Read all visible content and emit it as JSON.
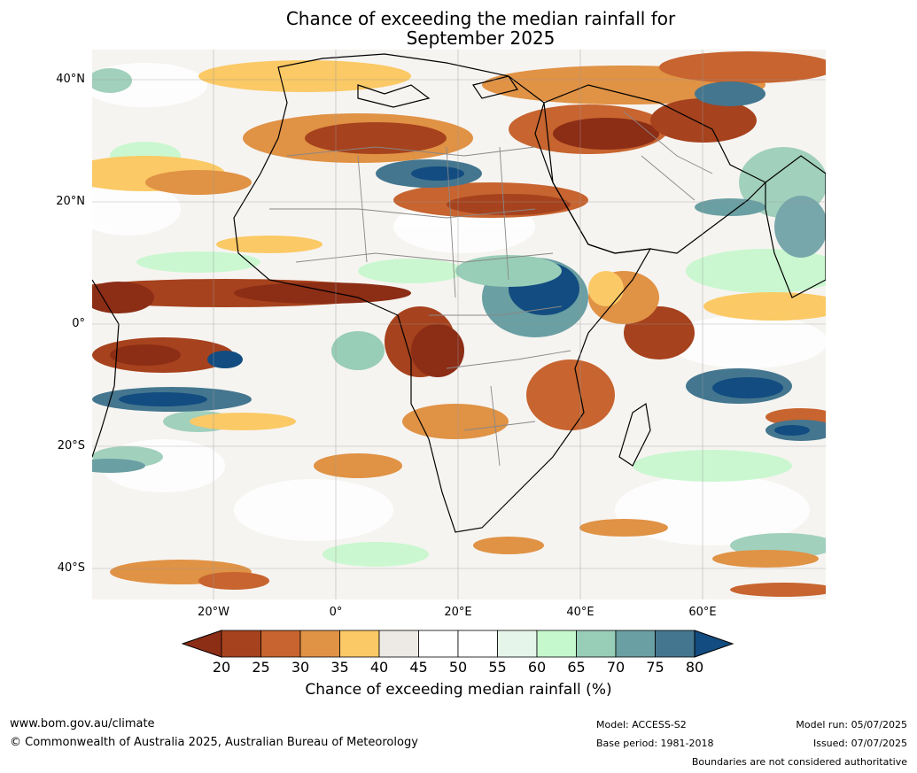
{
  "title_line1": "Chance of exceeding the median rainfall for",
  "title_line2": "September 2025",
  "lat_labels": [
    "40°N",
    "20°N",
    "0°",
    "20°S",
    "40°S"
  ],
  "lon_labels": [
    "20°W",
    "0°",
    "20°E",
    "40°E",
    "60°E"
  ],
  "colorbar": {
    "ticks": [
      "20",
      "25",
      "30",
      "35",
      "40",
      "45",
      "50",
      "55",
      "60",
      "65",
      "70",
      "75",
      "80"
    ],
    "colors": [
      "#8c2d16",
      "#a6421d",
      "#c7642f",
      "#e09245",
      "#fbc965",
      "#edeae6",
      "#ffffff",
      "#ffffff",
      "#e6f5e9",
      "#c6f8cd",
      "#98cdb8",
      "#6a9fa3",
      "#44768f",
      "#124c80"
    ],
    "label": "Chance of exceeding median rainfall (%)"
  },
  "footer": {
    "url": "www.bom.gov.au/climate",
    "copyright": "© Commonwealth of Australia 2025, Australian Bureau of Meteorology",
    "model": "Model: ACCESS-S2",
    "base_period": "Base period: 1981-2018",
    "model_run": "Model run: 05/07/2025",
    "issued": "Issued: 07/07/2025",
    "disclaimer": "Boundaries are not considered authoritative"
  }
}
